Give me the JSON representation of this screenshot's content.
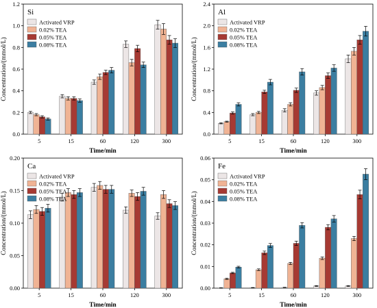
{
  "shared": {
    "categories": [
      "5",
      "15",
      "60",
      "120",
      "300"
    ],
    "xlabel": "Time/min",
    "ylabel": "Concentration/(mmol/L)",
    "legend": [
      "Activated VRP",
      "0.02% TEA",
      "0.05% TEA",
      "0.08% TEA"
    ],
    "colors": [
      "#ece6e6",
      "#f0b394",
      "#a63a33",
      "#3b7ea1"
    ]
  },
  "chart_data": [
    {
      "type": "bar",
      "title": "Si",
      "categories": [
        "5",
        "15",
        "60",
        "120",
        "300"
      ],
      "xlabel": "Time/min",
      "ylabel": "Concentration/(mmol/L)",
      "ylim": [
        0,
        1.2
      ],
      "yticks": [
        "0.0",
        "0.2",
        "0.4",
        "0.6",
        "0.8",
        "1.0",
        "1.2"
      ],
      "legend_position": "top-left",
      "series": [
        {
          "name": "Activated VRP",
          "values": [
            0.2,
            0.35,
            0.48,
            0.83,
            1.01
          ],
          "errors": [
            0.01,
            0.015,
            0.02,
            0.03,
            0.04
          ]
        },
        {
          "name": "0.02% TEA",
          "values": [
            0.18,
            0.33,
            0.53,
            0.66,
            0.97
          ],
          "errors": [
            0.01,
            0.015,
            0.025,
            0.03,
            0.05
          ]
        },
        {
          "name": "0.05% TEA",
          "values": [
            0.16,
            0.33,
            0.57,
            0.79,
            0.87
          ],
          "errors": [
            0.01,
            0.015,
            0.02,
            0.03,
            0.04
          ]
        },
        {
          "name": "0.08% TEA",
          "values": [
            0.14,
            0.31,
            0.59,
            0.64,
            0.84
          ],
          "errors": [
            0.01,
            0.015,
            0.025,
            0.025,
            0.04
          ]
        }
      ]
    },
    {
      "type": "bar",
      "title": "Al",
      "categories": [
        "5",
        "15",
        "60",
        "120",
        "300"
      ],
      "xlabel": "Time/min",
      "ylabel": "Concentration/(mmol/L)",
      "ylim": [
        0,
        2.4
      ],
      "yticks": [
        "0.0",
        "0.4",
        "0.8",
        "1.2",
        "1.6",
        "2.0",
        "2.4"
      ],
      "legend_position": "top-left",
      "series": [
        {
          "name": "Activated VRP",
          "values": [
            0.2,
            0.36,
            0.44,
            0.76,
            1.39
          ],
          "errors": [
            0.01,
            0.02,
            0.03,
            0.04,
            0.07
          ]
        },
        {
          "name": "0.02% TEA",
          "values": [
            0.23,
            0.4,
            0.55,
            0.86,
            1.53
          ],
          "errors": [
            0.01,
            0.02,
            0.03,
            0.04,
            0.07
          ]
        },
        {
          "name": "0.05% TEA",
          "values": [
            0.39,
            0.78,
            0.81,
            1.08,
            1.74
          ],
          "errors": [
            0.02,
            0.03,
            0.04,
            0.05,
            0.08
          ]
        },
        {
          "name": "0.08% TEA",
          "values": [
            0.55,
            0.96,
            1.15,
            1.22,
            1.9
          ],
          "errors": [
            0.03,
            0.05,
            0.06,
            0.06,
            0.09
          ]
        }
      ]
    },
    {
      "type": "bar",
      "title": "Ca",
      "categories": [
        "5",
        "15",
        "60",
        "120",
        "300"
      ],
      "xlabel": "Time/min",
      "ylabel": "Concentration/(mmol/L)",
      "ylim": [
        0,
        0.2
      ],
      "yticks": [
        "0.00",
        "0.05",
        "0.10",
        "0.15",
        "0.20"
      ],
      "legend_position": "top-left",
      "series": [
        {
          "name": "Activated VRP",
          "values": [
            0.113,
            0.14,
            0.155,
            0.12,
            0.111
          ],
          "errors": [
            0.006,
            0.006,
            0.006,
            0.005,
            0.005
          ]
        },
        {
          "name": "0.02% TEA",
          "values": [
            0.121,
            0.147,
            0.158,
            0.146,
            0.144
          ],
          "errors": [
            0.006,
            0.006,
            0.006,
            0.005,
            0.006
          ]
        },
        {
          "name": "0.05% TEA",
          "values": [
            0.118,
            0.144,
            0.152,
            0.141,
            0.13
          ],
          "errors": [
            0.006,
            0.006,
            0.006,
            0.006,
            0.006
          ]
        },
        {
          "name": "0.08% TEA",
          "values": [
            0.123,
            0.147,
            0.152,
            0.149,
            0.127
          ],
          "errors": [
            0.006,
            0.006,
            0.006,
            0.006,
            0.006
          ]
        }
      ]
    },
    {
      "type": "bar",
      "title": "Fe",
      "categories": [
        "5",
        "15",
        "60",
        "120",
        "300"
      ],
      "xlabel": "Time/min",
      "ylabel": "Concentration/(mmol/L)",
      "ylim": [
        0,
        0.06
      ],
      "yticks": [
        "0.00",
        "0.01",
        "0.02",
        "0.03",
        "0.04",
        "0.05",
        "0.06"
      ],
      "legend_position": "top-left",
      "series": [
        {
          "name": "Activated VRP",
          "values": [
            0.0001,
            0.0002,
            0.0003,
            0.001,
            0.001
          ],
          "errors": [
            0.0001,
            0.0001,
            0.0001,
            0.0002,
            0.0002
          ]
        },
        {
          "name": "0.02% TEA",
          "values": [
            0.0043,
            0.0085,
            0.0114,
            0.0138,
            0.0229
          ],
          "errors": [
            0.0003,
            0.0004,
            0.0005,
            0.0006,
            0.001
          ]
        },
        {
          "name": "0.05% TEA",
          "values": [
            0.007,
            0.0163,
            0.0207,
            0.0281,
            0.0432
          ],
          "errors": [
            0.0003,
            0.0008,
            0.001,
            0.0012,
            0.002
          ]
        },
        {
          "name": "0.08% TEA",
          "values": [
            0.0097,
            0.0197,
            0.029,
            0.032,
            0.0526
          ],
          "errors": [
            0.0004,
            0.0009,
            0.0012,
            0.0015,
            0.0025
          ]
        }
      ]
    }
  ]
}
